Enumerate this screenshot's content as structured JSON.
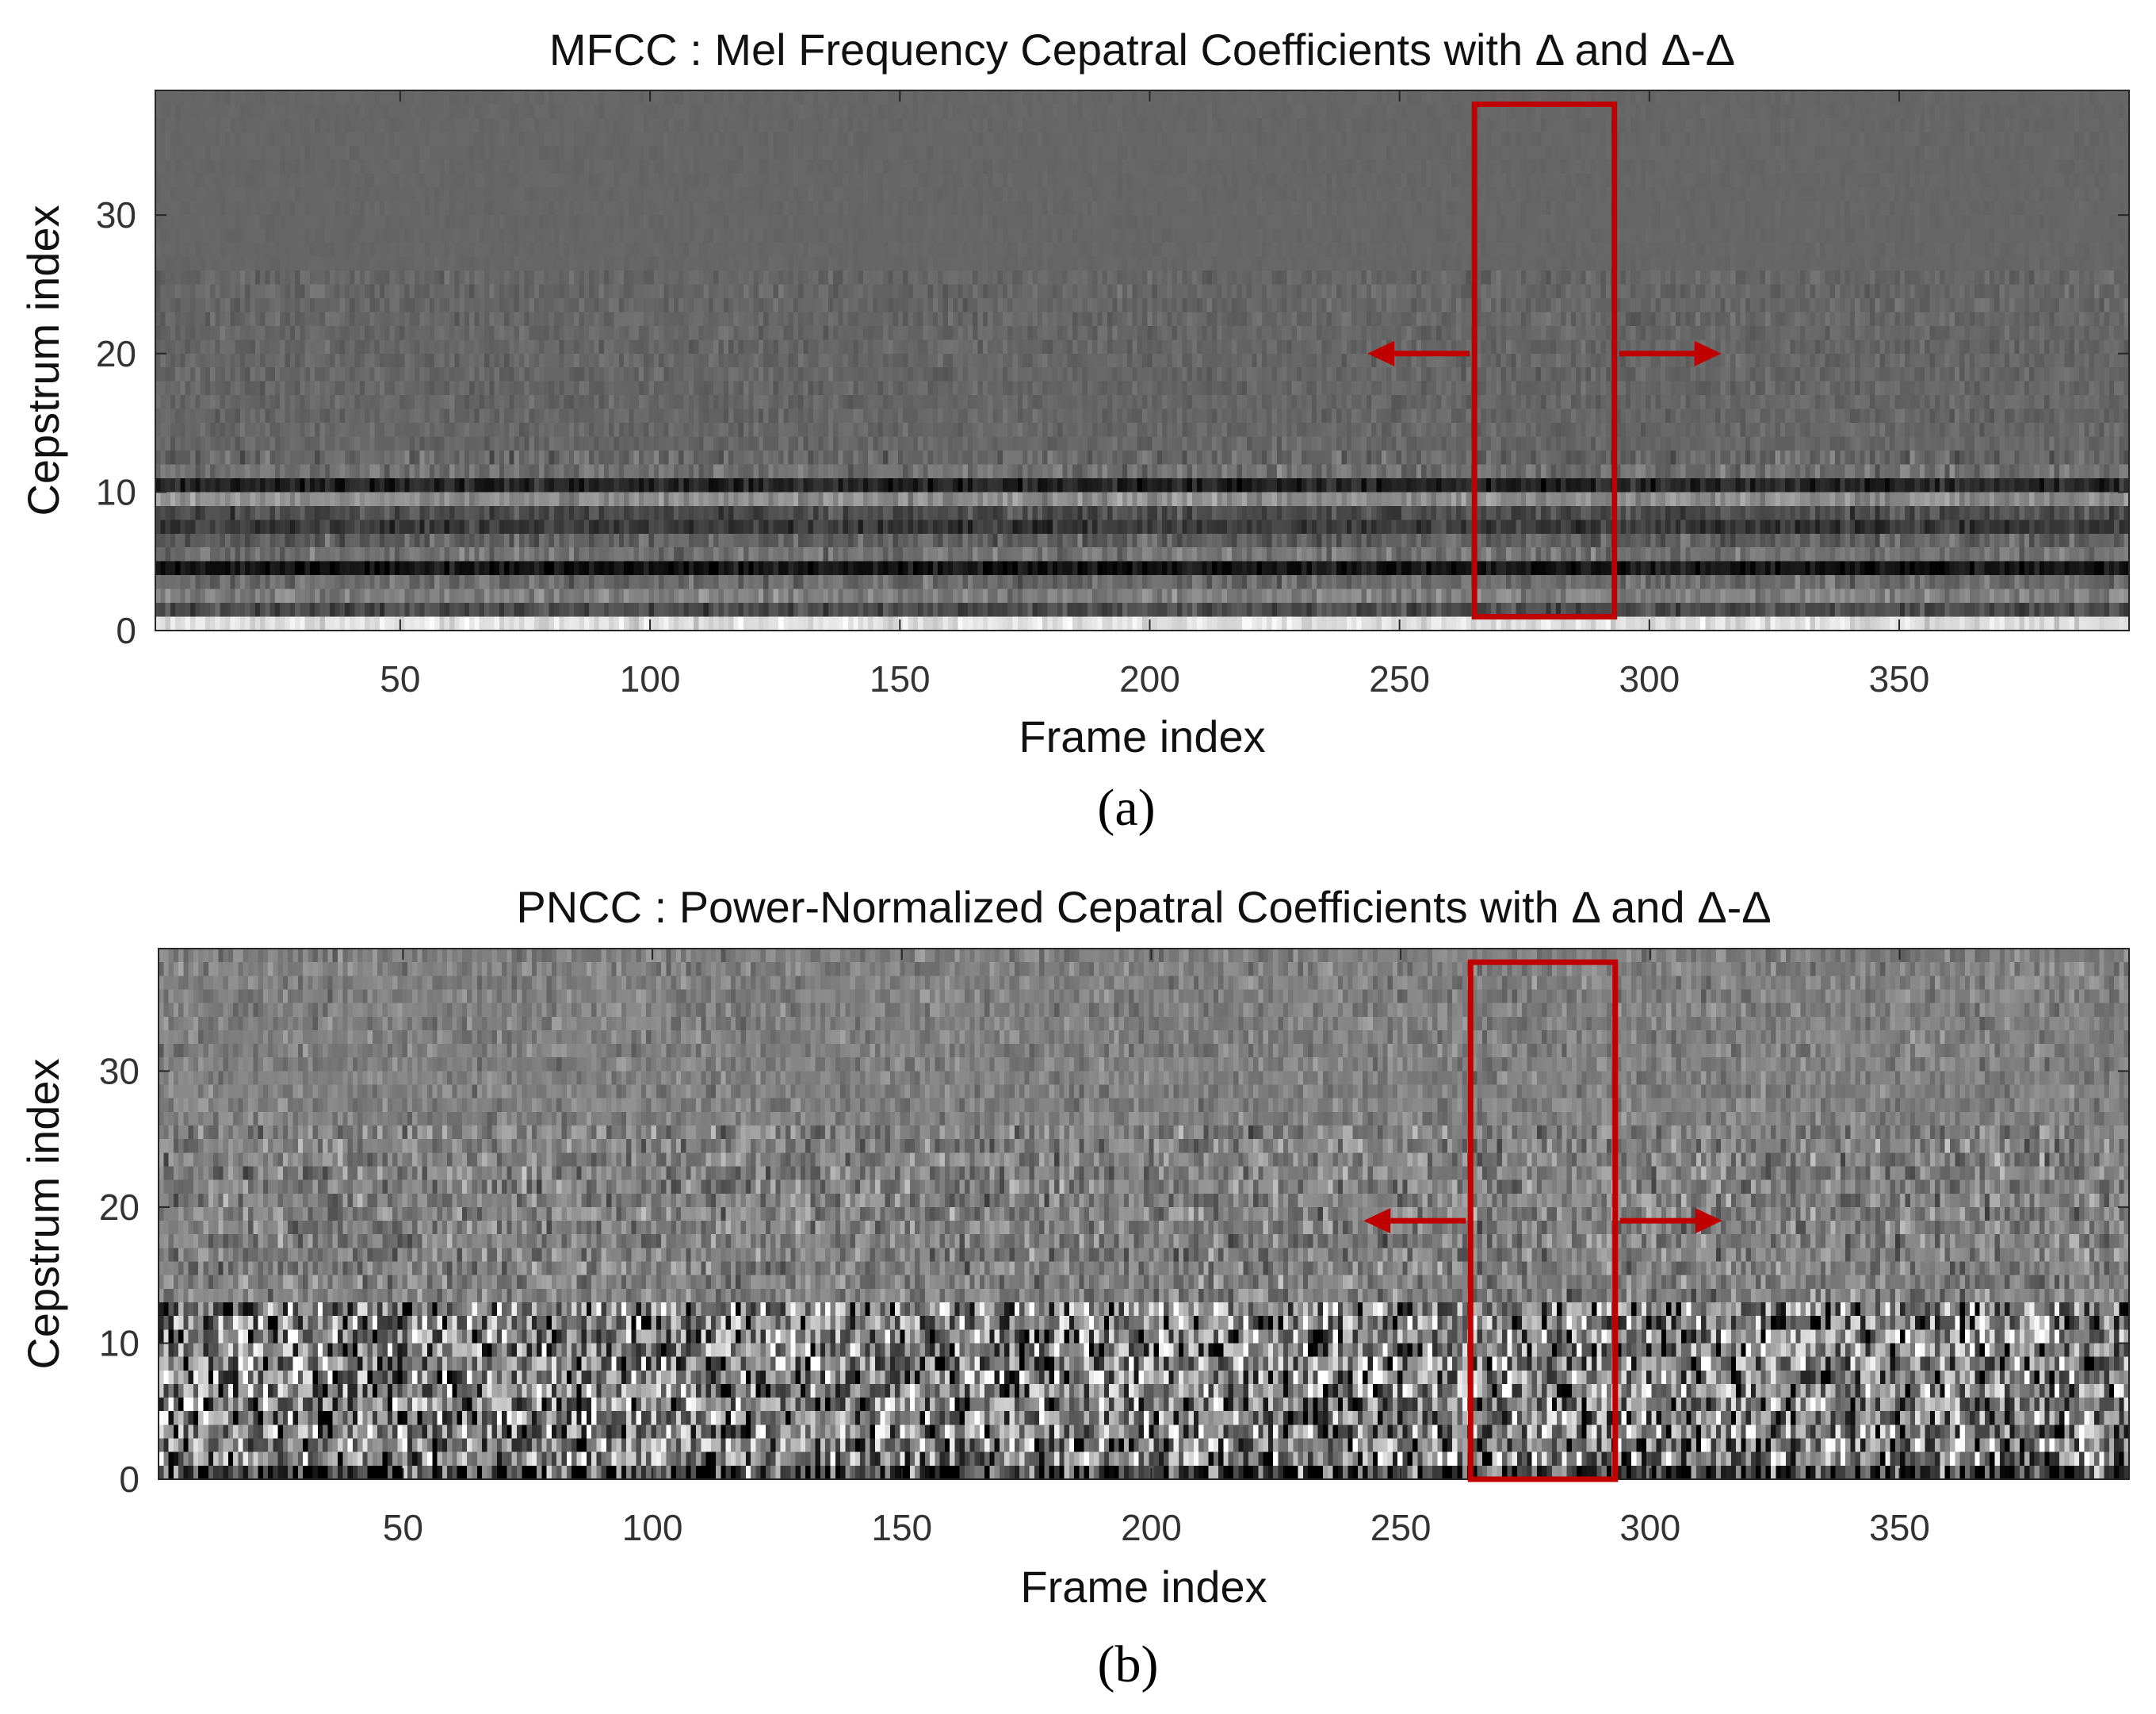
{
  "chart_data": [
    {
      "type": "heatmap",
      "title": "MFCC : Mel Frequency Cepatral Coefficients with Δ and Δ-Δ",
      "xlabel": "Frame index",
      "ylabel": "Cepstrum index",
      "caption": "(a)",
      "xlim": [
        1,
        396
      ],
      "ylim": [
        0,
        39
      ],
      "xticks": [
        50,
        100,
        150,
        200,
        250,
        300,
        350
      ],
      "yticks": [
        0,
        10,
        20,
        30
      ],
      "colormap": "gray",
      "frames": 396,
      "coefficients": 39,
      "bands": [
        {
          "rows": [
            0,
            0
          ],
          "level": 0.88
        },
        {
          "rows": [
            1,
            1
          ],
          "level": 0.3
        },
        {
          "rows": [
            2,
            2
          ],
          "level": 0.5
        },
        {
          "rows": [
            3,
            3
          ],
          "level": 0.42
        },
        {
          "rows": [
            4,
            4
          ],
          "level": 0.08
        },
        {
          "rows": [
            5,
            5
          ],
          "level": 0.45
        },
        {
          "rows": [
            6,
            6
          ],
          "level": 0.38
        },
        {
          "rows": [
            7,
            7
          ],
          "level": 0.22
        },
        {
          "rows": [
            8,
            8
          ],
          "level": 0.3
        },
        {
          "rows": [
            9,
            9
          ],
          "level": 0.56
        },
        {
          "rows": [
            10,
            10
          ],
          "level": 0.14
        },
        {
          "rows": [
            11,
            11
          ],
          "level": 0.44
        },
        {
          "rows": [
            12,
            12
          ],
          "level": 0.4
        },
        {
          "rows": [
            13,
            25
          ],
          "level": 0.4
        },
        {
          "rows": [
            26,
            38
          ],
          "level": 0.4
        }
      ],
      "noise": [
        {
          "rows": [
            0,
            12
          ],
          "amount": 0.08
        },
        {
          "rows": [
            13,
            25
          ],
          "amount": 0.04
        },
        {
          "rows": [
            26,
            38
          ],
          "amount": 0.01
        }
      ],
      "highlight": {
        "x_range": [
          265,
          293
        ],
        "y_range": [
          1,
          38
        ],
        "color": "#c00000",
        "arrow_y": 20
      }
    },
    {
      "type": "heatmap",
      "title": "PNCC : Power-Normalized Cepatral Coefficients with Δ and Δ-Δ",
      "xlabel": "Frame index",
      "ylabel": "Cepstrum index",
      "caption": "(b)",
      "xlim": [
        1,
        396
      ],
      "ylim": [
        0,
        39
      ],
      "xticks": [
        50,
        100,
        150,
        200,
        250,
        300,
        350
      ],
      "yticks": [
        0,
        10,
        20,
        30
      ],
      "colormap": "gray",
      "frames": 396,
      "coefficients": 39,
      "bands": [
        {
          "rows": [
            0,
            0
          ],
          "level": 0.2
        },
        {
          "rows": [
            1,
            12
          ],
          "level": 0.5
        },
        {
          "rows": [
            13,
            25
          ],
          "level": 0.5
        },
        {
          "rows": [
            26,
            38
          ],
          "level": 0.5
        }
      ],
      "noise": [
        {
          "rows": [
            0,
            12
          ],
          "amount": 0.42
        },
        {
          "rows": [
            13,
            25
          ],
          "amount": 0.14
        },
        {
          "rows": [
            26,
            38
          ],
          "amount": 0.08
        }
      ],
      "highlight": {
        "x_range": [
          264,
          293
        ],
        "y_range": [
          0,
          38
        ],
        "color": "#c00000",
        "arrow_y": 19
      }
    }
  ]
}
